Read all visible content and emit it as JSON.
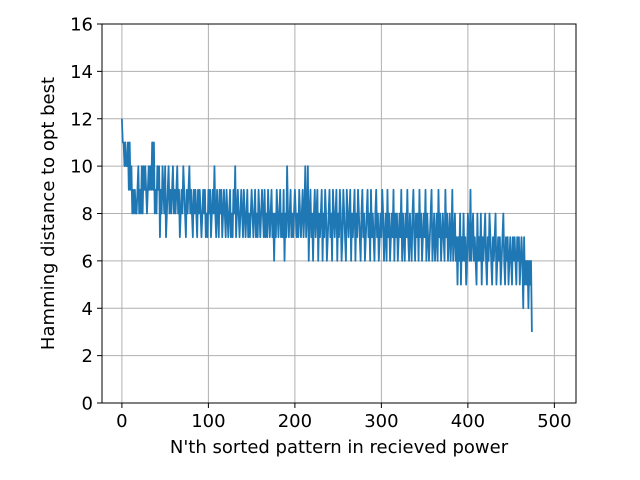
{
  "chart_data": {
    "type": "line",
    "title": "",
    "xlabel": "N'th sorted pattern in recieved power",
    "ylabel": "Hamming distance to opt best",
    "xlim": [
      -23,
      525
    ],
    "ylim": [
      0,
      16
    ],
    "xticks": [
      0,
      100,
      200,
      300,
      400,
      500
    ],
    "yticks": [
      0,
      2,
      4,
      6,
      8,
      10,
      12,
      14,
      16
    ],
    "xtick_labels": [
      "0",
      "100",
      "200",
      "300",
      "400",
      "500"
    ],
    "ytick_labels": [
      "0",
      "2",
      "4",
      "6",
      "8",
      "10",
      "12",
      "14",
      "16"
    ],
    "grid": true,
    "legend": "none",
    "series": [
      {
        "color": "#1f77b4",
        "x_start": 0,
        "x_step": 1,
        "y": [
          12,
          11,
          11,
          10,
          11,
          10,
          10,
          11,
          9,
          11,
          9,
          10,
          8,
          9,
          8,
          9,
          8,
          8,
          9,
          10,
          8,
          9,
          8,
          10,
          8,
          10,
          9,
          10,
          9,
          8,
          9,
          10,
          9,
          10,
          9,
          11,
          9,
          11,
          8,
          9,
          8,
          10,
          9,
          10,
          7,
          9,
          8,
          10,
          9,
          8,
          10,
          7,
          8,
          9,
          10,
          8,
          9,
          8,
          9,
          10,
          8,
          9,
          8,
          9,
          10,
          8,
          9,
          7,
          8,
          9,
          8,
          10,
          9,
          8,
          7,
          9,
          8,
          9,
          10,
          8,
          9,
          8,
          7,
          9,
          8,
          9,
          8,
          7,
          9,
          8,
          9,
          8,
          7,
          8,
          9,
          8,
          9,
          7,
          8,
          7,
          9,
          8,
          9,
          7,
          8,
          9,
          8,
          10,
          8,
          7,
          9,
          8,
          7,
          9,
          8,
          9,
          7,
          8,
          9,
          8,
          7,
          9,
          8,
          7,
          8,
          9,
          7,
          8,
          7,
          9,
          8,
          10,
          7,
          8,
          9,
          8,
          7,
          8,
          9,
          8,
          7,
          9,
          8,
          7,
          8,
          9,
          7,
          8,
          7,
          8,
          9,
          8,
          7,
          8,
          9,
          7,
          8,
          7,
          9,
          8,
          7,
          8,
          9,
          8,
          7,
          9,
          7,
          8,
          7,
          9,
          8,
          7,
          8,
          9,
          7,
          8,
          6,
          8,
          7,
          9,
          8,
          7,
          8,
          9,
          7,
          8,
          7,
          9,
          6,
          8,
          7,
          10,
          8,
          7,
          8,
          9,
          7,
          8,
          7,
          8,
          9,
          8,
          7,
          8,
          7,
          9,
          8,
          7,
          8,
          9,
          7,
          8,
          10,
          7,
          8,
          10,
          6,
          8,
          9,
          7,
          8,
          6,
          8,
          9,
          7,
          8,
          9,
          6,
          8,
          7,
          8,
          9,
          6,
          8,
          7,
          9,
          8,
          6,
          7,
          8,
          9,
          7,
          8,
          6,
          9,
          8,
          7,
          8,
          9,
          6,
          8,
          7,
          9,
          8,
          6,
          7,
          9,
          8,
          7,
          6,
          9,
          8,
          7,
          8,
          9,
          6,
          8,
          7,
          8,
          9,
          6,
          8,
          7,
          9,
          8,
          7,
          6,
          8,
          9,
          7,
          8,
          6,
          7,
          8,
          9,
          7,
          8,
          6,
          9,
          7,
          8,
          7,
          6,
          8,
          9,
          7,
          8,
          6,
          7,
          8,
          7,
          9,
          8,
          6,
          7,
          8,
          6,
          9,
          7,
          8,
          6,
          7,
          8,
          7,
          9,
          6,
          8,
          7,
          8,
          6,
          7,
          8,
          7,
          9,
          6,
          8,
          7,
          6,
          8,
          7,
          9,
          7,
          6,
          8,
          7,
          6,
          8,
          9,
          7,
          6,
          8,
          7,
          8,
          6,
          9,
          7,
          8,
          6,
          7,
          8,
          7,
          9,
          6,
          8,
          7,
          6,
          7,
          8,
          9,
          6,
          7,
          8,
          6,
          7,
          8,
          6,
          9,
          7,
          8,
          6,
          7,
          8,
          7,
          6,
          9,
          7,
          8,
          6,
          7,
          8,
          6,
          7,
          9,
          6,
          7,
          8,
          6,
          7,
          5,
          7,
          6,
          8,
          5,
          7,
          6,
          8,
          6,
          7,
          5,
          6,
          8,
          7,
          6,
          9,
          6,
          7,
          8,
          6,
          7,
          6,
          5,
          8,
          6,
          7,
          6,
          8,
          5,
          7,
          6,
          7,
          8,
          6,
          5,
          7,
          6,
          8,
          7,
          6,
          5,
          7,
          6,
          7,
          8,
          5,
          6,
          7,
          6,
          7,
          5,
          6,
          7,
          8,
          6,
          5,
          7,
          6,
          7,
          5,
          6,
          7,
          6,
          5,
          7,
          6,
          7,
          6,
          5,
          7,
          6,
          7,
          5,
          6,
          7,
          6,
          4,
          7,
          5,
          6,
          5,
          6,
          4,
          6,
          5,
          6,
          3
        ]
      }
    ]
  }
}
